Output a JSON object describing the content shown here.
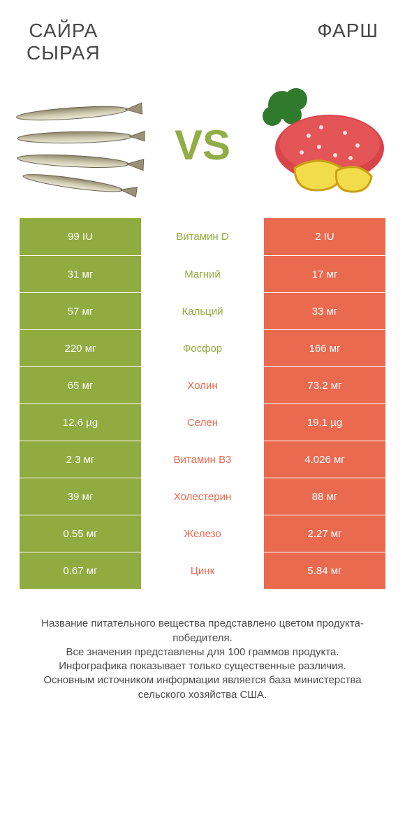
{
  "palette": {
    "green": "#90ab3f",
    "orange": "#ea6a50",
    "vs": "#92ac47",
    "title": "#484848",
    "text": "#4a4a4a"
  },
  "header": {
    "left_title": "САЙРА\nСЫРАЯ",
    "right_title": "ФАРШ",
    "vs_label": "VS",
    "title_fontsize": 28,
    "vs_fontsize": 60
  },
  "rows": [
    {
      "left": "99 IU",
      "mid": "Витамин D",
      "right": "2 IU",
      "winner": "left"
    },
    {
      "left": "31 мг",
      "mid": "Магний",
      "right": "17 мг",
      "winner": "left"
    },
    {
      "left": "57 мг",
      "mid": "Кальций",
      "right": "33 мг",
      "winner": "left"
    },
    {
      "left": "220 мг",
      "mid": "Фосфор",
      "right": "166 мг",
      "winner": "left"
    },
    {
      "left": "65 мг",
      "mid": "Холин",
      "right": "73.2 мг",
      "winner": "right"
    },
    {
      "left": "12.6 µg",
      "mid": "Селен",
      "right": "19.1 µg",
      "winner": "right"
    },
    {
      "left": "2.3 мг",
      "mid": "Витамин B3",
      "right": "4.026 мг",
      "winner": "right"
    },
    {
      "left": "39 мг",
      "mid": "Холестерин",
      "right": "88 мг",
      "winner": "right"
    },
    {
      "left": "0.55 мг",
      "mid": "Железо",
      "right": "2.27 мг",
      "winner": "right"
    },
    {
      "left": "0.67 мг",
      "mid": "Цинк",
      "right": "5.84 мг",
      "winner": "right"
    }
  ],
  "footnotes": [
    "Название питательного вещества представлено цветом продукта-победителя.",
    "Все значения представлены для 100 граммов продукта.",
    "Инфографика показывает только существенные различия.",
    "Основным источником информации является база министерства сельского хозяйства США."
  ]
}
